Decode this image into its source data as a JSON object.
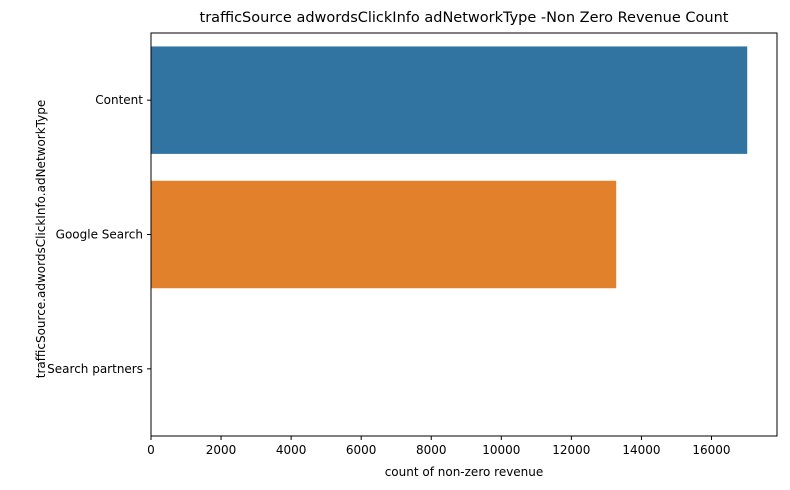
{
  "chart_data": {
    "type": "bar",
    "orientation": "horizontal",
    "title": "trafficSource adwordsClickInfo adNetworkType -Non Zero Revenue Count",
    "xlabel": "count of non-zero revenue",
    "ylabel": "trafficSource.adwordsClickInfo.adNetworkType",
    "categories": [
      "Content",
      "Google Search",
      "Search partners"
    ],
    "values": [
      17020,
      13280,
      0
    ],
    "colors": [
      "#3274a1",
      "#e1812c",
      "#3a923a"
    ],
    "xlim": [
      0,
      17870
    ],
    "xticks": [
      0,
      2000,
      4000,
      6000,
      8000,
      10000,
      12000,
      14000,
      16000
    ],
    "grid": false,
    "legend": "none"
  }
}
